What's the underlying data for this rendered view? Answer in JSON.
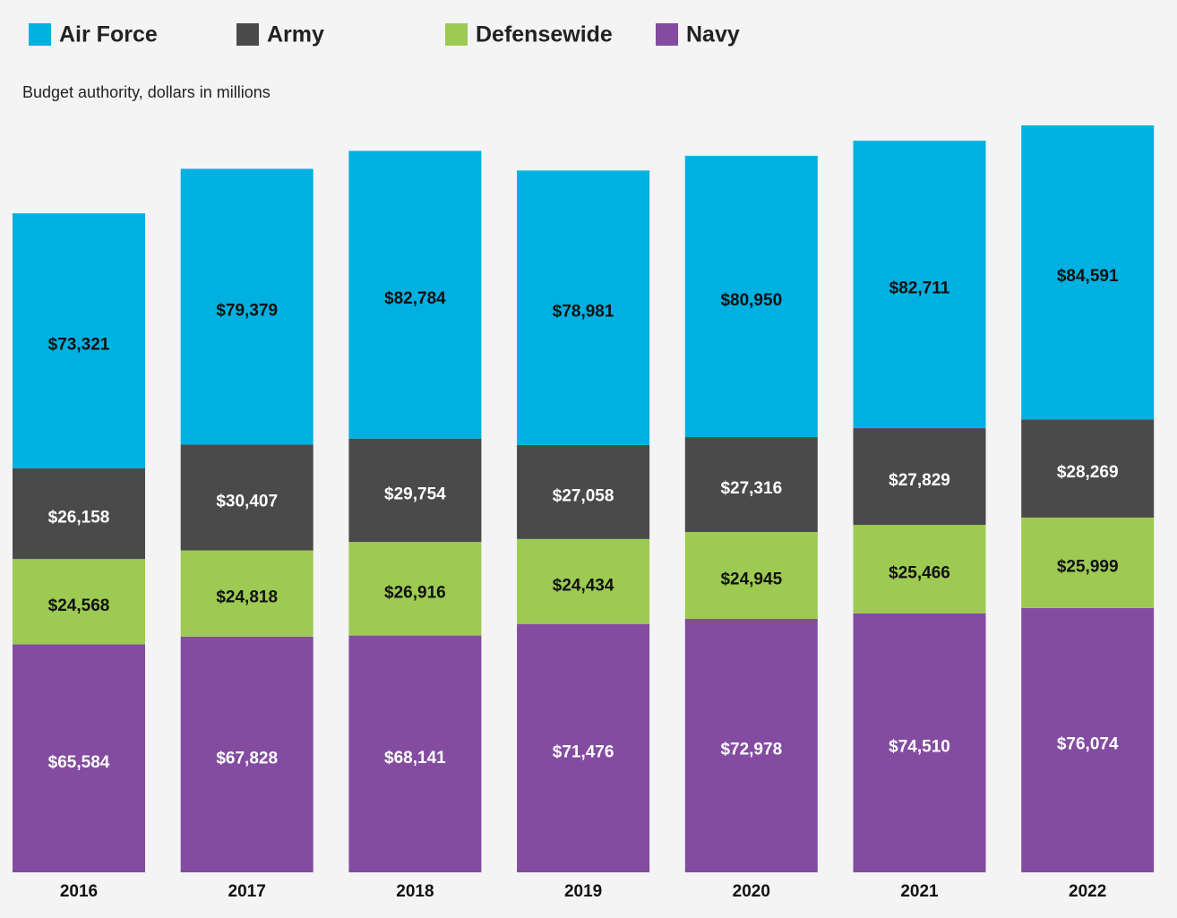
{
  "chart_data": {
    "type": "stacked_bar",
    "subtitle": "Budget authority, dollars in millions",
    "categories": [
      "2016",
      "2017",
      "2018",
      "2019",
      "2020",
      "2021",
      "2022"
    ],
    "series": [
      {
        "name": "Air Force",
        "color": "#00b0e0",
        "values": [
          73321,
          79379,
          82784,
          78981,
          80950,
          82711,
          84591
        ],
        "value_labels": [
          "$73,321",
          "$79,379",
          "$82,784",
          "$78,981",
          "$80,950",
          "$82,711",
          "$84,591"
        ]
      },
      {
        "name": "Army",
        "color": "#4a4a4a",
        "values": [
          26158,
          30407,
          29754,
          27058,
          27316,
          27829,
          28269
        ],
        "value_labels": [
          "$26,158",
          "$30,407",
          "$29,754",
          "$27,058",
          "$27,316",
          "$27,829",
          "$28,269"
        ]
      },
      {
        "name": "Defensewide",
        "color": "#9dca52",
        "values": [
          24568,
          24818,
          26916,
          24434,
          24945,
          25466,
          25999
        ],
        "value_labels": [
          "$24,568",
          "$24,818",
          "$26,916",
          "$24,434",
          "$24,945",
          "$25,466",
          "$25,999"
        ]
      },
      {
        "name": "Navy",
        "color": "#834ca0",
        "values": [
          65584,
          67828,
          68141,
          71476,
          72978,
          74510,
          76074
        ],
        "value_labels": [
          "$65,584",
          "$67,828",
          "$68,141",
          "$71,476",
          "$72,978",
          "$74,510",
          "$76,074"
        ]
      }
    ]
  }
}
